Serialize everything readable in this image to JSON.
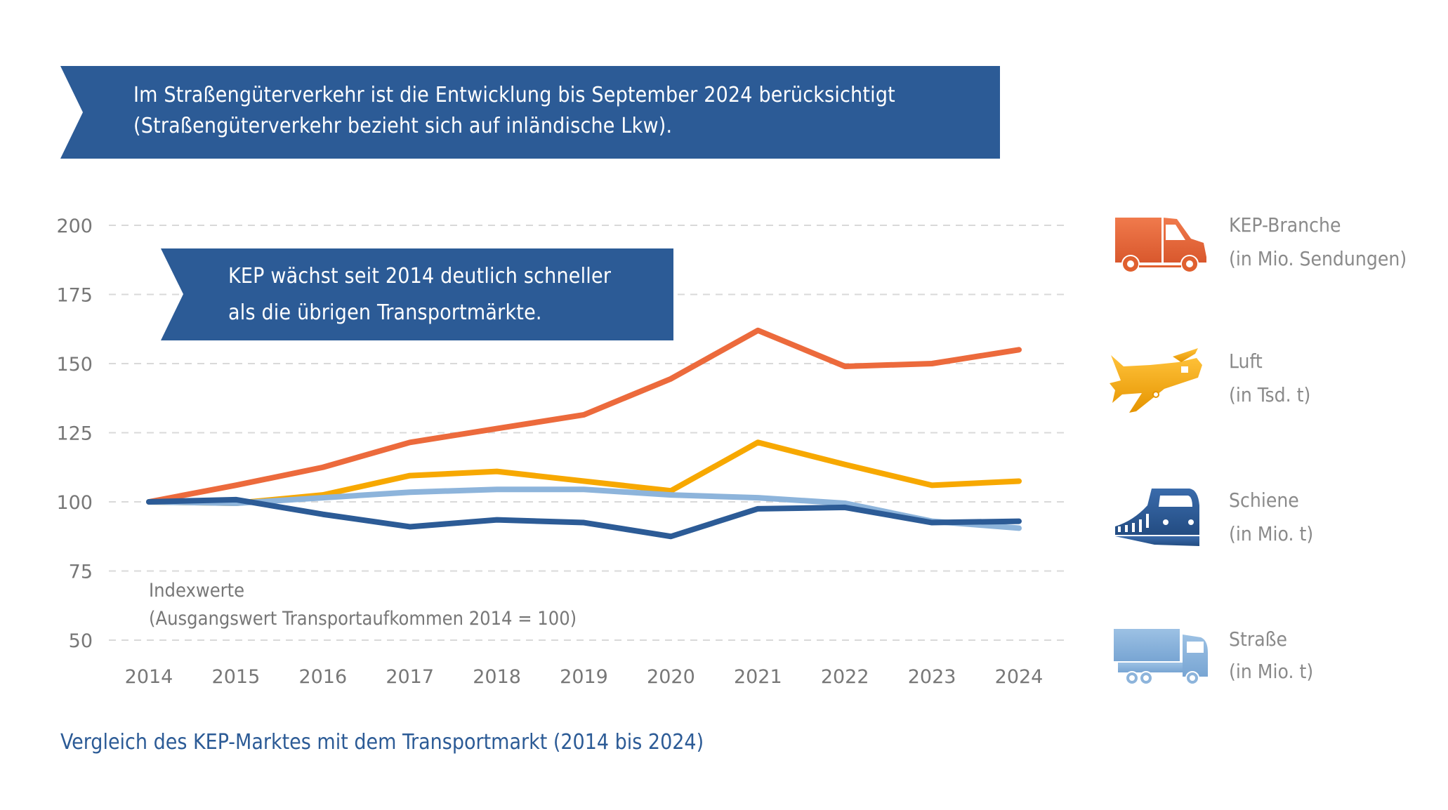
{
  "top_banner": {
    "line1": "Im Straßengüterverkehr ist die Entwicklung bis September 2024 berücksichtigt",
    "line2": "(Straßengüterverkehr bezieht sich auf inländische Lkw)."
  },
  "kep_banner": {
    "line1": "KEP wächst seit 2014 deutlich schneller",
    "line2": "als die übrigen Transportmärkte."
  },
  "note": {
    "line1": "Indexwerte",
    "line2": "(Ausgangswert Transportaufkommen 2014 = 100)"
  },
  "caption": "Vergleich des KEP-Marktes mit dem Transportmarkt (2014 bis 2024)",
  "colors": {
    "banner": "#2c5b96",
    "kep": "#ec6a3c",
    "luft": "#f7a800",
    "schiene": "#2c5b96",
    "strasse": "#8db4db",
    "grid": "#d9d9d9",
    "axis_text": "#777777"
  },
  "legend": [
    {
      "name": "KEP-Branche",
      "unit": "(in Mio. Sendungen)",
      "icon": "delivery-van-icon"
    },
    {
      "name": "Luft",
      "unit": "(in Tsd. t)",
      "icon": "airplane-icon"
    },
    {
      "name": "Schiene",
      "unit": "(in Mio. t)",
      "icon": "train-icon"
    },
    {
      "name": "Straße",
      "unit": "(in Mio. t)",
      "icon": "truck-icon"
    }
  ],
  "chart_data": {
    "type": "line",
    "title": "Vergleich des KEP-Marktes mit dem Transportmarkt (2014 bis 2024)",
    "xlabel": "",
    "ylabel": "Indexwerte (Ausgangswert Transportaufkommen 2014 = 100)",
    "x": [
      "2014",
      "2015",
      "2016",
      "2017",
      "2018",
      "2019",
      "2020",
      "2021",
      "2022",
      "2023",
      "2024"
    ],
    "yticks": [
      50,
      75,
      100,
      125,
      150,
      175,
      200
    ],
    "ylim": [
      50,
      200
    ],
    "grid": true,
    "legend_position": "right",
    "series": [
      {
        "name": "KEP-Branche (in Mio. Sendungen)",
        "key": "kep",
        "values": [
          100,
          106,
          112.5,
          121.5,
          126.5,
          131.5,
          144.5,
          162,
          149,
          150,
          155
        ]
      },
      {
        "name": "Luft (in Tsd. t)",
        "key": "luft",
        "values": [
          100,
          99.5,
          102.5,
          109.5,
          111,
          107.5,
          104,
          121.5,
          113.5,
          106,
          107.5
        ]
      },
      {
        "name": "Straße (in Mio. t)",
        "key": "strasse",
        "values": [
          100,
          99.5,
          101.5,
          103.5,
          104.5,
          104.5,
          102.5,
          101.5,
          99.5,
          93,
          90.5
        ]
      },
      {
        "name": "Schiene (in Mio. t)",
        "key": "schiene",
        "values": [
          100,
          100.8,
          95.5,
          91,
          93.5,
          92.5,
          87.5,
          97.5,
          98,
          92.5,
          93
        ]
      }
    ]
  }
}
